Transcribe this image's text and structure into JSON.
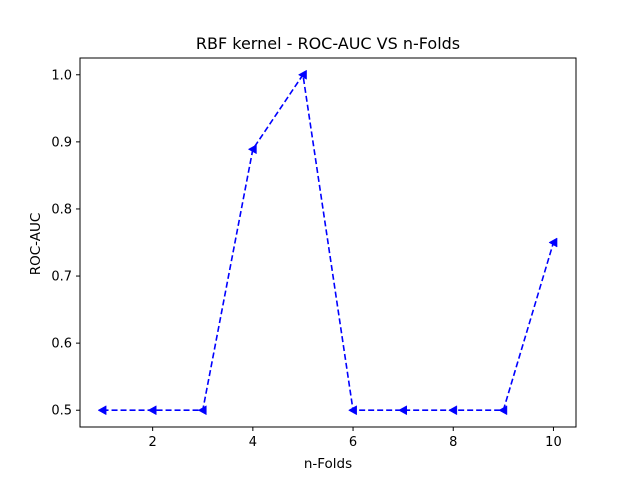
{
  "chart_data": {
    "type": "line",
    "title": "RBF kernel - ROC-AUC VS n-Folds",
    "xlabel": "n-Folds",
    "ylabel": "ROC-AUC",
    "x": [
      1,
      2,
      3,
      4,
      5,
      6,
      7,
      8,
      9,
      10
    ],
    "series": [
      {
        "values": [
          0.5,
          0.5,
          0.5,
          0.889,
          1.0,
          0.5,
          0.5,
          0.5,
          0.5,
          0.75
        ],
        "color": "#0000ff",
        "line_style": "dashed",
        "marker": "left-triangle"
      }
    ],
    "xlim": [
      0.55,
      10.45
    ],
    "ylim": [
      0.475,
      1.025
    ],
    "xticks": [
      2,
      4,
      6,
      8,
      10
    ],
    "yticks": [
      0.5,
      0.6,
      0.7,
      0.8,
      0.9,
      1.0
    ],
    "xtick_labels": [
      "2",
      "4",
      "6",
      "8",
      "10"
    ],
    "ytick_labels": [
      "0.5",
      "0.6",
      "0.7",
      "0.8",
      "0.9",
      "1.0"
    ],
    "grid": false,
    "legend": "none"
  }
}
